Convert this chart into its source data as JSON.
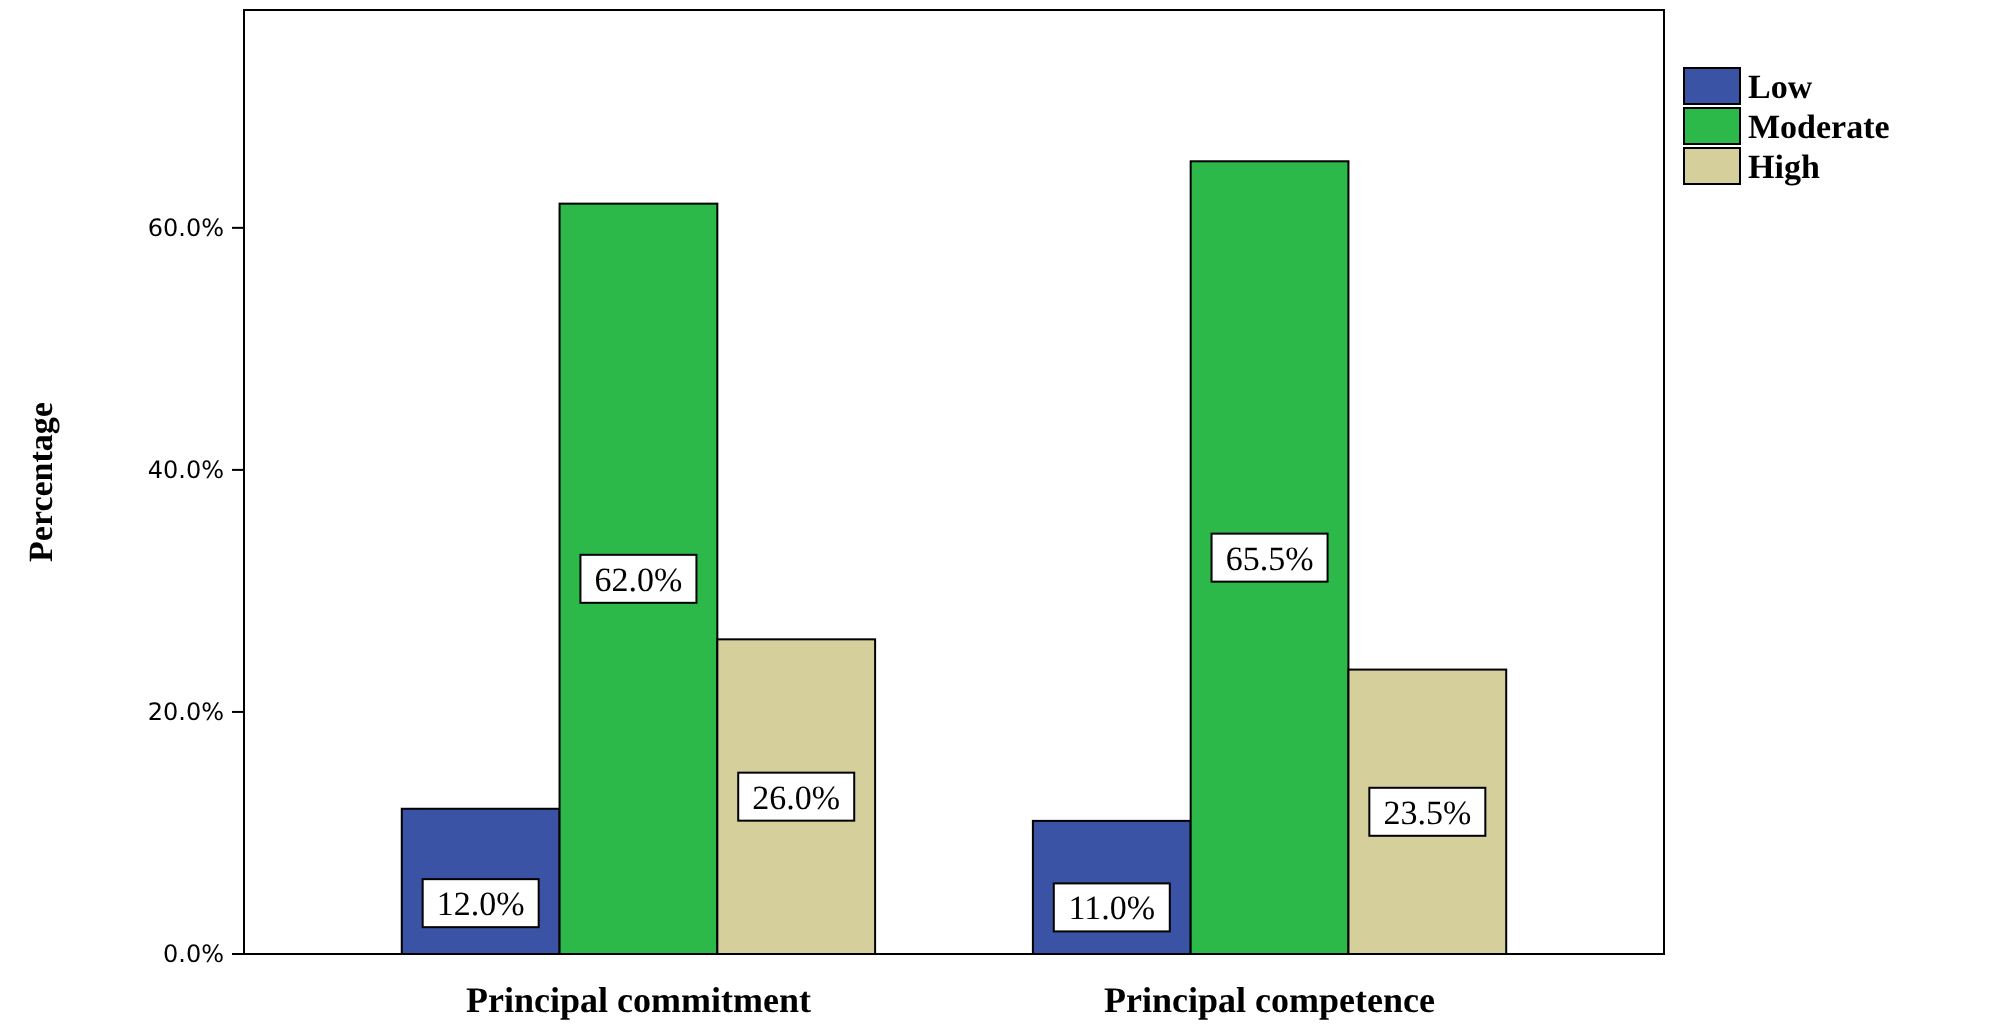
{
  "chart_data": {
    "type": "bar",
    "ylabel": "Percentage",
    "categories": [
      "Principal commitment",
      "Principal competence"
    ],
    "series": [
      {
        "name": "Low",
        "color": "#3b53a5",
        "values": [
          12.0,
          11.0
        ]
      },
      {
        "name": "Moderate",
        "color": "#2db84a",
        "values": [
          62.0,
          65.5
        ]
      },
      {
        "name": "High",
        "color": "#d5cf9b",
        "values": [
          26.0,
          23.5
        ]
      }
    ],
    "ylim": [
      0,
      78
    ],
    "yticks": [
      {
        "value": 0,
        "label": "0.0%"
      },
      {
        "value": 20,
        "label": "20.0%"
      },
      {
        "value": 40,
        "label": "40.0%"
      },
      {
        "value": 60,
        "label": "60.0%"
      }
    ],
    "value_labels": [
      [
        "12.0%",
        "11.0%"
      ],
      [
        "62.0%",
        "65.5%"
      ],
      [
        "26.0%",
        "23.5%"
      ]
    ],
    "legend": "top right",
    "grid": false
  }
}
